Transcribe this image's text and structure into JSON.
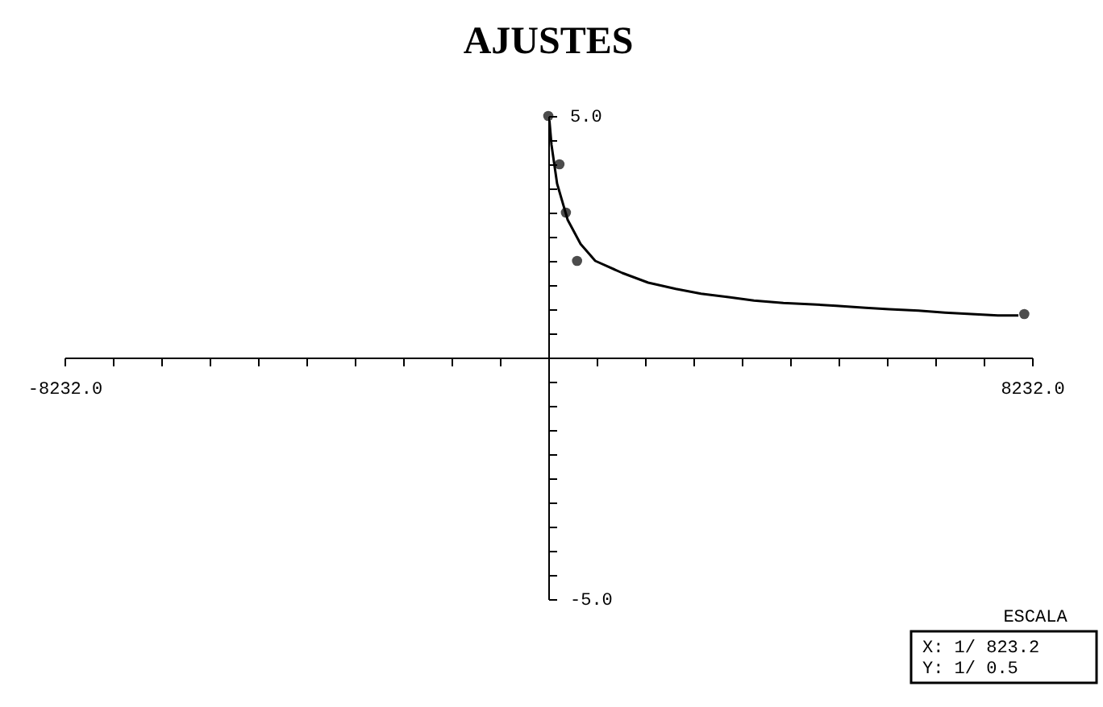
{
  "chart_data": {
    "type": "scatter",
    "title": "AJUSTES",
    "xlim": [
      -8232,
      8232
    ],
    "xticks": [
      {
        "value": -8232,
        "label": "-8232.0"
      },
      {
        "value": -7408.8,
        "label": null
      },
      {
        "value": -6585.6,
        "label": null
      },
      {
        "value": -5762.4,
        "label": null
      },
      {
        "value": -4939.2,
        "label": null
      },
      {
        "value": -4116,
        "label": null
      },
      {
        "value": -3292.8,
        "label": null
      },
      {
        "value": -2469.6,
        "label": null
      },
      {
        "value": -1646.4,
        "label": null
      },
      {
        "value": -823.2,
        "label": null
      },
      {
        "value": 0,
        "label": null
      },
      {
        "value": 823.2,
        "label": null
      },
      {
        "value": 1646.4,
        "label": null
      },
      {
        "value": 2469.6,
        "label": null
      },
      {
        "value": 3292.8,
        "label": null
      },
      {
        "value": 4116,
        "label": null
      },
      {
        "value": 4939.2,
        "label": null
      },
      {
        "value": 5762.4,
        "label": null
      },
      {
        "value": 6585.6,
        "label": null
      },
      {
        "value": 7408.8,
        "label": null
      },
      {
        "value": 8232,
        "label": "8232.0"
      }
    ],
    "ylim": [
      -5,
      5
    ],
    "yticks": [
      {
        "value": -5,
        "label": "-5.0"
      },
      {
        "value": -4.5,
        "label": null
      },
      {
        "value": -4,
        "label": null
      },
      {
        "value": -3.5,
        "label": null
      },
      {
        "value": -3,
        "label": null
      },
      {
        "value": -2.5,
        "label": null
      },
      {
        "value": -2,
        "label": null
      },
      {
        "value": -1.5,
        "label": null
      },
      {
        "value": -1,
        "label": null
      },
      {
        "value": -0.5,
        "label": null
      },
      {
        "value": 0,
        "label": null
      },
      {
        "value": 0.5,
        "label": null
      },
      {
        "value": 1,
        "label": null
      },
      {
        "value": 1.5,
        "label": null
      },
      {
        "value": 2,
        "label": null
      },
      {
        "value": 2.5,
        "label": null
      },
      {
        "value": 3,
        "label": null
      },
      {
        "value": 3.5,
        "label": null
      },
      {
        "value": 4,
        "label": null
      },
      {
        "value": 4.5,
        "label": null
      },
      {
        "value": 5,
        "label": "5.0"
      }
    ],
    "grid": false,
    "series": [
      {
        "marker": "circle",
        "color": "#000000",
        "x": [
          0,
          190,
          300,
          490,
          8100
        ],
        "values": [
          5.0,
          4.0,
          3.0,
          2.0,
          0.9
        ]
      },
      {
        "type": "line",
        "marker": "none",
        "color": "#000000",
        "x": [
          20,
          55,
          150,
          330,
          550,
          800,
          1260,
          1700,
          2170,
          2600,
          3070,
          3500,
          4000,
          4500,
          4900,
          5400,
          5800,
          6300,
          6750,
          7200,
          7650,
          8000
        ],
        "values": [
          4.9,
          4.4,
          3.6,
          2.85,
          2.35,
          2.0,
          1.75,
          1.55,
          1.42,
          1.32,
          1.25,
          1.18,
          1.13,
          1.1,
          1.07,
          1.03,
          1.0,
          0.97,
          0.93,
          0.9,
          0.87,
          0.87
        ]
      }
    ],
    "annotations": [
      "ESCALA",
      "X: 1/ 823.2",
      "Y: 1/ 0.5"
    ]
  }
}
